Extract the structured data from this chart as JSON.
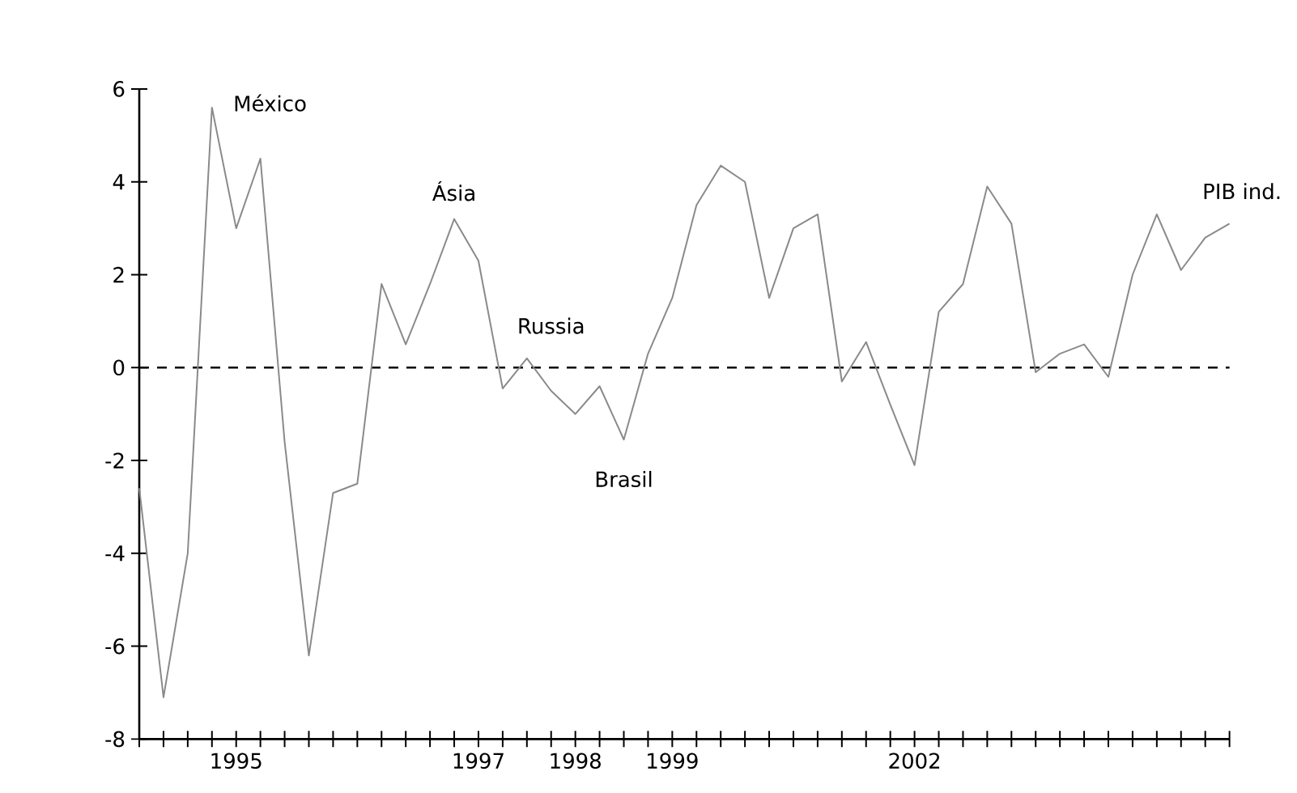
{
  "chart_data": {
    "type": "line",
    "categories": [
      null,
      null,
      null,
      null,
      "1995",
      null,
      null,
      null,
      null,
      null,
      null,
      null,
      null,
      null,
      "1997",
      null,
      null,
      null,
      "1998",
      null,
      null,
      null,
      "1999",
      null,
      null,
      null,
      null,
      null,
      null,
      null,
      null,
      null,
      "2002",
      null,
      null,
      null,
      null,
      null,
      null,
      null,
      null,
      null,
      null,
      null,
      null,
      null
    ],
    "series": [
      {
        "color": "#8a8a8a",
        "values": [
          -2.6,
          -7.1,
          -4.0,
          5.6,
          3.0,
          4.5,
          -1.6,
          -6.2,
          -2.7,
          -2.5,
          1.8,
          0.5,
          1.8,
          3.2,
          2.3,
          -0.45,
          0.2,
          -0.5,
          -1.0,
          -0.4,
          -1.55,
          0.3,
          1.5,
          3.5,
          4.35,
          4.0,
          1.5,
          3.0,
          3.3,
          -0.3,
          0.55,
          -0.8,
          -2.1,
          1.2,
          1.8,
          3.9,
          3.1,
          -0.1,
          0.3,
          0.5,
          -0.2,
          2.0,
          3.3,
          2.1,
          2.8,
          3.1
        ]
      }
    ],
    "ylim": [
      -8,
      6
    ],
    "yticks": [
      -8,
      -6,
      -4,
      -2,
      0,
      2,
      4,
      6
    ],
    "ref_lines": [
      {
        "axis": "y",
        "value": 0,
        "color": "#000000",
        "line_style": "dashed"
      }
    ],
    "annotations": [
      "México",
      "Ásia",
      "Russia",
      "Brasil",
      "PIB ind."
    ],
    "grid": false,
    "marker": "none",
    "line_style": "solid"
  }
}
